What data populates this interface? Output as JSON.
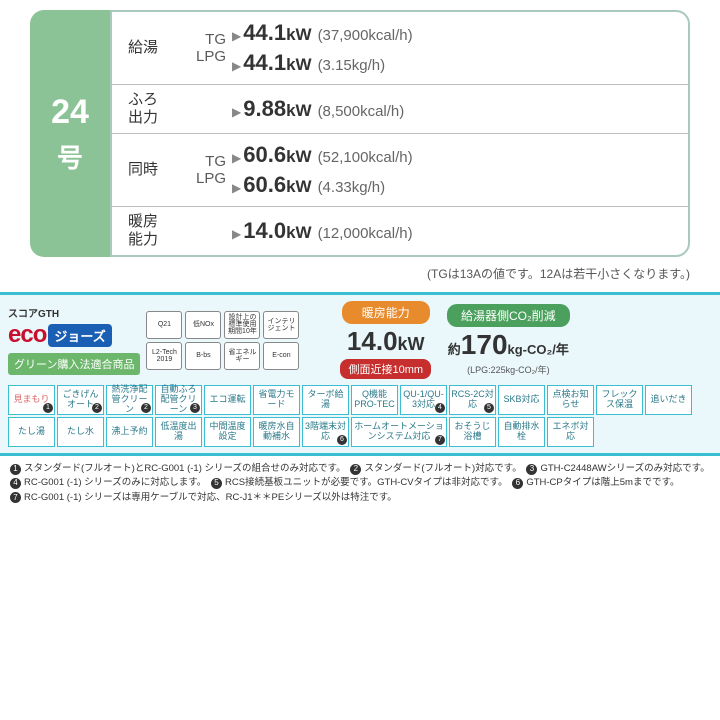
{
  "model": {
    "number": "24",
    "go": "号"
  },
  "specs": [
    {
      "label": "給湯",
      "lines": [
        {
          "fuel": "TG",
          "kw": "44.1",
          "unit": "kW",
          "paren": "(37,900kcal/h)"
        },
        {
          "fuel": "LPG",
          "kw": "44.1",
          "unit": "kW",
          "paren": "(3.15kg/h)"
        }
      ]
    },
    {
      "label": "ふろ\n出力",
      "lines": [
        {
          "fuel": "",
          "kw": "9.88",
          "unit": "kW",
          "paren": "(8,500kcal/h)"
        }
      ]
    },
    {
      "label": "同時",
      "lines": [
        {
          "fuel": "TG",
          "kw": "60.6",
          "unit": "kW",
          "paren": "(52,100kcal/h)"
        },
        {
          "fuel": "LPG",
          "kw": "60.6",
          "unit": "kW",
          "paren": "(4.33kg/h)"
        }
      ]
    },
    {
      "label": "暖房\n能力",
      "lines": [
        {
          "fuel": "",
          "kw": "14.0",
          "unit": "kW",
          "paren": "(12,000kcal/h)"
        }
      ]
    }
  ],
  "note": "(TGは13Aの値です。12Aは若干小さくなります。)",
  "eco": {
    "score": "スコアGTH",
    "eco": "eco",
    "jo": "ジョーズ",
    "green": "グリーン購入法適合商品"
  },
  "certs": [
    "Q21",
    "低NOx",
    "設計上の標準使用期間10年",
    "インテリジェント",
    "L2-Tech 2019",
    "B-bs",
    "省エネルギー",
    "E-con"
  ],
  "heat": {
    "title": "暖房能力",
    "val": "14.0",
    "unit": "kW",
    "sub": "側面近接10mm"
  },
  "co2": {
    "title": "給湯器側CO₂削減",
    "prefix": "約",
    "val": "170",
    "unit": "kg-CO₂/年",
    "sub": "(LPG:225kg-CO₂/年)"
  },
  "feats": [
    {
      "t": "見まもり",
      "s": "1",
      "pink": true
    },
    {
      "t": "ごきげんオート",
      "s": "2"
    },
    {
      "t": "熱洗浄配管クリーン",
      "s": "2"
    },
    {
      "t": "自動ふろ配管クリーン",
      "s": "3"
    },
    {
      "t": "エコ運転"
    },
    {
      "t": "省電力モード"
    },
    {
      "t": "ターボ給湯"
    },
    {
      "t": "Q機能PRO-TEC"
    },
    {
      "t": "QU-1/QU-3対応",
      "s": "4"
    },
    {
      "t": "RCS-2C対応",
      "s": "5"
    },
    {
      "t": "SKB対応"
    },
    {
      "t": "点検お知らせ"
    },
    {
      "t": "フレックス保温"
    },
    {
      "t": "追いだき"
    },
    {
      "t": "たし湯"
    },
    {
      "t": "たし水"
    },
    {
      "t": "沸上予約"
    },
    {
      "t": "低温度出湯"
    },
    {
      "t": "中間温度設定"
    },
    {
      "t": "暖房水自動補水"
    },
    {
      "t": "3階端末対応",
      "s": "6"
    },
    {
      "t": "ホームオートメーションシステム対応",
      "s": "7",
      "wide": true
    },
    {
      "t": "おそうじ浴槽"
    },
    {
      "t": "自動排水栓"
    },
    {
      "t": "エネボ対応"
    }
  ],
  "foot": [
    {
      "n": "1",
      "t": "スタンダード(フルオート)とRC-G001 (-1) シリーズの組合せのみ対応です。"
    },
    {
      "n": "2",
      "t": "スタンダード(フルオート)対応です。"
    },
    {
      "n": "3",
      "t": "GTH-C2448AWシリーズのみ対応です。"
    },
    {
      "n": "4",
      "t": "RC-G001 (-1) シリーズのみに対応します。"
    },
    {
      "n": "5",
      "t": "RCS接続基板ユニットが必要です。GTH-CVタイプは非対応です。"
    },
    {
      "n": "6",
      "t": "GTH-CPタイプは階上5mまでです。"
    },
    {
      "n": "7",
      "t": "RC-G001 (-1) シリーズは専用ケーブルで対応、RC-J1＊＊PEシリーズ以外は特注です。"
    }
  ]
}
